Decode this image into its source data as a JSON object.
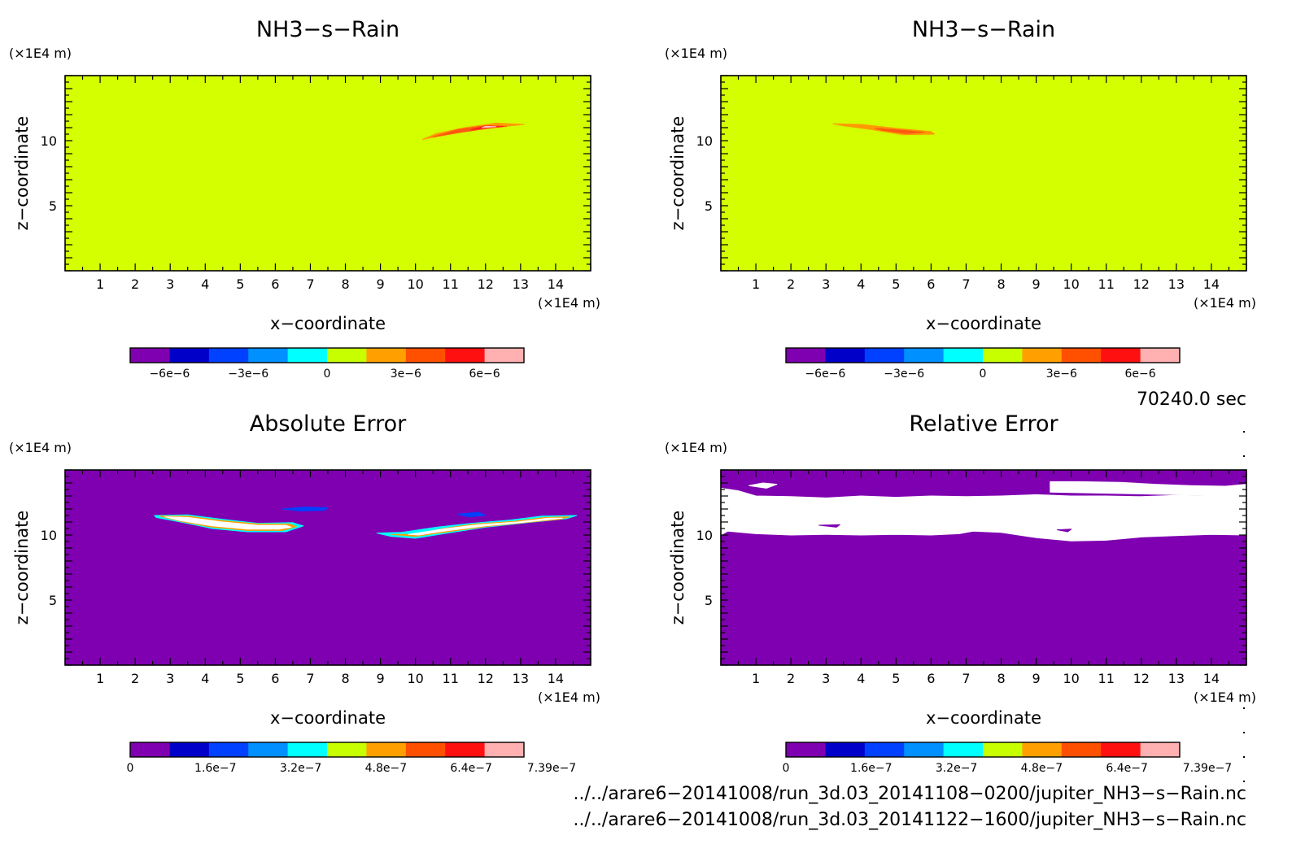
{
  "chart_data": [
    {
      "type": "contour",
      "title": "NH3−s−Rain",
      "xlabel": "x−coordinate",
      "ylabel": "z−coordinate",
      "x_unit": "(×1E4 m)",
      "y_unit": "(×1E4 m)",
      "xlim": [
        0,
        15
      ],
      "ylim": [
        0,
        15
      ],
      "x_ticks": [
        1,
        2,
        3,
        4,
        5,
        6,
        7,
        8,
        9,
        10,
        11,
        12,
        13,
        14
      ],
      "y_ticks": [
        5,
        10
      ],
      "background_level_color": "#d4ff00",
      "colorbar": {
        "colors": [
          "#7f00b0",
          "#0000c8",
          "#0040ff",
          "#0090ff",
          "#00ffff",
          "#c8ff00",
          "#ffa000",
          "#ff5000",
          "#ff1010",
          "#ffb0b0"
        ],
        "ticks": [
          {
            "value": -6e-06,
            "label": "−6e−6"
          },
          {
            "value": -3e-06,
            "label": "−3e−6"
          },
          {
            "value": 0,
            "label": "0"
          },
          {
            "value": 3e-06,
            "label": "3e−6"
          },
          {
            "value": 6e-06,
            "label": "6e−6"
          }
        ],
        "min": -7.5e-06,
        "max": 7.5e-06
      },
      "features": [
        {
          "color": "#ff9a00",
          "points": [
            [
              10.2,
              10.1
            ],
            [
              10.8,
              10.4
            ],
            [
              11.6,
              10.8
            ],
            [
              12.2,
              11.0
            ],
            [
              13.1,
              11.25
            ],
            [
              12.3,
              11.35
            ],
            [
              11.4,
              11.0
            ],
            [
              10.6,
              10.55
            ],
            [
              10.2,
              10.1
            ]
          ]
        },
        {
          "color": "#ff5a10",
          "points": [
            [
              10.5,
              10.3
            ],
            [
              11.3,
              10.65
            ],
            [
              12.1,
              10.95
            ],
            [
              12.6,
              11.1
            ],
            [
              12.0,
              11.15
            ],
            [
              11.2,
              10.85
            ],
            [
              10.5,
              10.3
            ]
          ]
        },
        {
          "color": "#ff1a1a",
          "points": [
            [
              11.6,
              10.85
            ],
            [
              12.2,
              11.05
            ],
            [
              12.5,
              11.1
            ],
            [
              12.0,
              11.12
            ],
            [
              11.6,
              10.85
            ]
          ]
        },
        {
          "color": "#ffc0c0",
          "points": [
            [
              11.9,
              11.0
            ],
            [
              12.3,
              11.08
            ],
            [
              12.0,
              11.1
            ],
            [
              11.9,
              11.0
            ]
          ]
        }
      ]
    },
    {
      "type": "contour",
      "title": "NH3−s−Rain",
      "xlabel": "x−coordinate",
      "ylabel": "z−coordinate",
      "x_unit": "(×1E4 m)",
      "y_unit": "(×1E4 m)",
      "xlim": [
        0,
        15
      ],
      "ylim": [
        0,
        15
      ],
      "x_ticks": [
        1,
        2,
        3,
        4,
        5,
        6,
        7,
        8,
        9,
        10,
        11,
        12,
        13,
        14
      ],
      "y_ticks": [
        5,
        10
      ],
      "background_level_color": "#d4ff00",
      "colorbar": {
        "colors": [
          "#7f00b0",
          "#0000c8",
          "#0040ff",
          "#0090ff",
          "#00ffff",
          "#c8ff00",
          "#ffa000",
          "#ff5000",
          "#ff1010",
          "#ffb0b0"
        ],
        "ticks": [
          {
            "value": -6e-06,
            "label": "−6e−6"
          },
          {
            "value": -3e-06,
            "label": "−3e−6"
          },
          {
            "value": 0,
            "label": "0"
          },
          {
            "value": 3e-06,
            "label": "3e−6"
          },
          {
            "value": 6e-06,
            "label": "6e−6"
          }
        ],
        "min": -7.5e-06,
        "max": 7.5e-06
      },
      "features": [
        {
          "color": "#ff9a00",
          "points": [
            [
              3.2,
              11.3
            ],
            [
              4.0,
              11.25
            ],
            [
              5.0,
              10.95
            ],
            [
              6.0,
              10.7
            ],
            [
              6.1,
              10.5
            ],
            [
              5.2,
              10.45
            ],
            [
              4.3,
              10.85
            ],
            [
              3.5,
              11.15
            ],
            [
              3.2,
              11.3
            ]
          ]
        },
        {
          "color": "#ff5a10",
          "points": [
            [
              4.4,
              10.95
            ],
            [
              5.2,
              10.8
            ],
            [
              5.8,
              10.65
            ],
            [
              5.3,
              10.55
            ],
            [
              4.6,
              10.8
            ],
            [
              4.4,
              10.95
            ]
          ]
        }
      ]
    },
    {
      "type": "contour",
      "title": "Absolute Error",
      "xlabel": "x−coordinate",
      "ylabel": "z−coordinate",
      "x_unit": "(×1E4 m)",
      "y_unit": "(×1E4 m)",
      "xlim": [
        0,
        15
      ],
      "ylim": [
        0,
        15
      ],
      "x_ticks": [
        1,
        2,
        3,
        4,
        5,
        6,
        7,
        8,
        9,
        10,
        11,
        12,
        13,
        14
      ],
      "y_ticks": [
        5,
        10
      ],
      "background_level_color": "#7f00b0",
      "colorbar": {
        "colors": [
          "#7f00b0",
          "#0000c8",
          "#0040ff",
          "#0090ff",
          "#00ffff",
          "#c8ff00",
          "#ffa000",
          "#ff5000",
          "#ff1010",
          "#ffb0b0"
        ],
        "ticks": [
          {
            "value": 0,
            "label": "0"
          },
          {
            "value": 1.6e-07,
            "label": "1.6e−7"
          },
          {
            "value": 3.2e-07,
            "label": "3.2e−7"
          },
          {
            "value": 4.8e-07,
            "label": "4.8e−7"
          },
          {
            "value": 6.4e-07,
            "label": "6.4e−7"
          },
          {
            "value": 7.39e-07,
            "label": "7.39e−7"
          }
        ],
        "min": 0,
        "max": 7.39e-07
      },
      "features": [
        {
          "color": "#00ffff",
          "points": [
            [
              2.55,
              11.5
            ],
            [
              3.5,
              11.55
            ],
            [
              4.5,
              11.2
            ],
            [
              5.5,
              10.9
            ],
            [
              6.5,
              10.95
            ],
            [
              6.8,
              10.7
            ],
            [
              6.3,
              10.25
            ],
            [
              5.2,
              10.25
            ],
            [
              4.2,
              10.5
            ],
            [
              3.3,
              11.0
            ],
            [
              2.6,
              11.35
            ],
            [
              2.55,
              11.5
            ]
          ]
        },
        {
          "color": "#ffa000",
          "points": [
            [
              2.7,
              11.45
            ],
            [
              3.5,
              11.45
            ],
            [
              4.5,
              11.1
            ],
            [
              5.5,
              10.85
            ],
            [
              6.4,
              10.85
            ],
            [
              6.6,
              10.65
            ],
            [
              6.2,
              10.35
            ],
            [
              5.2,
              10.35
            ],
            [
              4.2,
              10.6
            ],
            [
              3.3,
              11.05
            ],
            [
              2.7,
              11.45
            ]
          ]
        },
        {
          "color": "#ffffff",
          "points": [
            [
              2.85,
              11.4
            ],
            [
              3.5,
              11.35
            ],
            [
              4.5,
              11.0
            ],
            [
              5.5,
              10.75
            ],
            [
              6.3,
              10.75
            ],
            [
              6.45,
              10.6
            ],
            [
              6.1,
              10.45
            ],
            [
              5.2,
              10.45
            ],
            [
              4.2,
              10.7
            ],
            [
              3.3,
              11.1
            ],
            [
              2.85,
              11.4
            ]
          ]
        },
        {
          "color": "#00ffff",
          "points": [
            [
              8.9,
              10.15
            ],
            [
              9.6,
              10.2
            ],
            [
              10.6,
              10.6
            ],
            [
              11.6,
              10.9
            ],
            [
              12.7,
              11.15
            ],
            [
              13.6,
              11.45
            ],
            [
              14.6,
              11.5
            ],
            [
              14.3,
              11.25
            ],
            [
              13.2,
              10.95
            ],
            [
              12.0,
              10.6
            ],
            [
              10.8,
              10.1
            ],
            [
              10.0,
              9.75
            ],
            [
              9.3,
              9.9
            ],
            [
              8.9,
              10.15
            ]
          ]
        },
        {
          "color": "#ffa000",
          "points": [
            [
              9.3,
              10.05
            ],
            [
              10.0,
              10.05
            ],
            [
              10.8,
              10.5
            ],
            [
              11.7,
              10.85
            ],
            [
              12.8,
              11.05
            ],
            [
              13.7,
              11.35
            ],
            [
              14.4,
              11.4
            ],
            [
              14.1,
              11.2
            ],
            [
              13.1,
              10.95
            ],
            [
              12.0,
              10.65
            ],
            [
              10.8,
              10.2
            ],
            [
              10.0,
              9.9
            ],
            [
              9.3,
              10.05
            ]
          ]
        },
        {
          "color": "#ffffff",
          "points": [
            [
              9.8,
              10.05
            ],
            [
              10.9,
              10.5
            ],
            [
              11.8,
              10.8
            ],
            [
              12.9,
              11.0
            ],
            [
              13.8,
              11.3
            ],
            [
              14.2,
              11.3
            ],
            [
              13.0,
              10.95
            ],
            [
              12.0,
              10.7
            ],
            [
              10.8,
              10.3
            ],
            [
              10.1,
              10.0
            ],
            [
              9.8,
              10.05
            ]
          ]
        },
        {
          "color": "#0040ff",
          "points": [
            [
              6.2,
              12.0
            ],
            [
              6.8,
              12.15
            ],
            [
              7.5,
              12.1
            ],
            [
              7.4,
              11.9
            ],
            [
              6.7,
              11.85
            ],
            [
              6.2,
              12.0
            ]
          ]
        },
        {
          "color": "#0040ff",
          "points": [
            [
              11.2,
              11.6
            ],
            [
              11.8,
              11.75
            ],
            [
              12.0,
              11.5
            ],
            [
              11.5,
              11.4
            ],
            [
              11.2,
              11.6
            ]
          ]
        }
      ]
    },
    {
      "type": "contour",
      "title": "Relative Error",
      "xlabel": "x−coordinate",
      "ylabel": "z−coordinate",
      "x_unit": "(×1E4 m)",
      "y_unit": "(×1E4 m)",
      "xlim": [
        0,
        15
      ],
      "ylim": [
        0,
        15
      ],
      "x_ticks": [
        1,
        2,
        3,
        4,
        5,
        6,
        7,
        8,
        9,
        10,
        11,
        12,
        13,
        14
      ],
      "y_ticks": [
        5,
        10
      ],
      "background_level_color": "#7f00b0",
      "colorbar": {
        "colors": [
          "#7f00b0",
          "#0000c8",
          "#0040ff",
          "#0090ff",
          "#00ffff",
          "#c8ff00",
          "#ffa000",
          "#ff5000",
          "#ff1010",
          "#ffb0b0"
        ],
        "ticks": [
          {
            "value": 0,
            "label": "0"
          },
          {
            "value": 1.6e-07,
            "label": "1.6e−7"
          },
          {
            "value": 3.2e-07,
            "label": "3.2e−7"
          },
          {
            "value": 4.8e-07,
            "label": "4.8e−7"
          },
          {
            "value": 6.4e-07,
            "label": "6.4e−7"
          },
          {
            "value": 7.39e-07,
            "label": "7.39e−7"
          }
        ],
        "min": 0,
        "max": 7.39e-07
      },
      "features": [
        {
          "color": "#ffffff",
          "points": [
            [
              0,
              13.6
            ],
            [
              0.5,
              13.4
            ],
            [
              1.0,
              13.0
            ],
            [
              2.0,
              12.95
            ],
            [
              3.0,
              12.85
            ],
            [
              4.0,
              13.0
            ],
            [
              5.0,
              12.9
            ],
            [
              6.0,
              13.0
            ],
            [
              7.0,
              12.95
            ],
            [
              8.0,
              13.0
            ],
            [
              9.0,
              13.1
            ],
            [
              10.0,
              13.0
            ],
            [
              11.0,
              13.0
            ],
            [
              12.0,
              12.95
            ],
            [
              13.0,
              13.05
            ],
            [
              14.0,
              13.0
            ],
            [
              14.6,
              13.3
            ],
            [
              15,
              13.5
            ],
            [
              15,
              10.0
            ],
            [
              14.0,
              10.05
            ],
            [
              13.0,
              9.95
            ],
            [
              12.0,
              9.85
            ],
            [
              11.0,
              9.6
            ],
            [
              10.0,
              9.55
            ],
            [
              9.0,
              9.8
            ],
            [
              8.0,
              10.2
            ],
            [
              7.2,
              10.3
            ],
            [
              6.8,
              10.1
            ],
            [
              6.0,
              10.0
            ],
            [
              5.0,
              10.05
            ],
            [
              4.0,
              10.0
            ],
            [
              3.0,
              10.05
            ],
            [
              2.0,
              10.0
            ],
            [
              1.0,
              10.1
            ],
            [
              0.2,
              10.3
            ],
            [
              0,
              10.0
            ]
          ]
        },
        {
          "color": "#ffffff",
          "points": [
            [
              0.8,
              13.8
            ],
            [
              1.2,
              14.0
            ],
            [
              1.6,
              13.9
            ],
            [
              1.3,
              13.6
            ],
            [
              0.8,
              13.8
            ]
          ]
        },
        {
          "color": "#ffffff",
          "points": [
            [
              9.4,
              14.1
            ],
            [
              10.2,
              14.1
            ],
            [
              11.4,
              14.05
            ],
            [
              12.4,
              13.9
            ],
            [
              13.4,
              13.8
            ],
            [
              14.4,
              13.75
            ],
            [
              15,
              13.9
            ],
            [
              15,
              13.0
            ],
            [
              9.4,
              13.3
            ],
            [
              9.4,
              14.1
            ]
          ]
        },
        {
          "color": "#7f00b0",
          "points": [
            [
              2.8,
              10.75
            ],
            [
              3.4,
              10.8
            ],
            [
              3.3,
              10.6
            ],
            [
              2.8,
              10.75
            ]
          ]
        },
        {
          "color": "#7f00b0",
          "points": [
            [
              9.6,
              10.4
            ],
            [
              10.0,
              10.45
            ],
            [
              9.9,
              10.25
            ],
            [
              9.6,
              10.4
            ]
          ]
        }
      ]
    }
  ],
  "footer": {
    "time_label": "70240.0 sec",
    "file1": "../../arare6−20141008/run_3d.03_20141108−0200/jupiter_NH3−s−Rain.nc",
    "file2": "../../arare6−20141008/run_3d.03_20141122−1600/jupiter_NH3−s−Rain.nc"
  }
}
